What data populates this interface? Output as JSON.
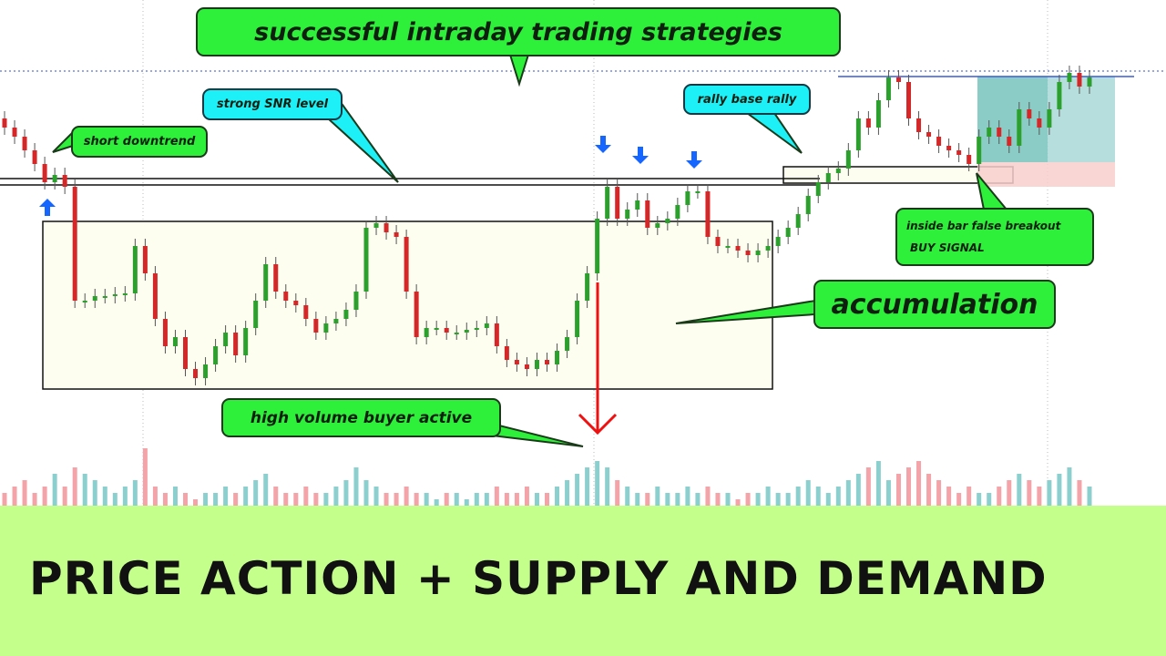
{
  "title": "successful intraday trading strategies",
  "banner": "PRICE ACTION + SUPPLY AND DEMAND",
  "annotations": {
    "snr": "strong SNR level",
    "downtrend": "short downtrend",
    "rbr": "rally base rally",
    "signal_line1": "inside bar false breakout",
    "signal_line2": "BUY SIGNAL",
    "accumulation": "accumulation",
    "volume": "high volume buyer active"
  },
  "colors": {
    "up": "#2ca02c",
    "down": "#d62728",
    "vol_up": "#8ccfcf",
    "vol_down": "#f4a3a8",
    "callout_green": "#2ef03a",
    "callout_cyan": "#1ef0f8",
    "banner": "#c4ff8c",
    "arrow_blue": "#1565ff",
    "arrow_red": "#ee1111"
  },
  "chart_data": {
    "type": "candlestick",
    "title": "",
    "xlabel": "",
    "ylabel": "",
    "grid": false,
    "first_open": 330,
    "closes": [
      320,
      310,
      295,
      280,
      260,
      268,
      255,
      130,
      130,
      135,
      135,
      137,
      138,
      190,
      160,
      110,
      80,
      90,
      55,
      45,
      60,
      80,
      95,
      70,
      100,
      130,
      170,
      140,
      130,
      125,
      110,
      95,
      105,
      110,
      120,
      140,
      210,
      215,
      205,
      200,
      140,
      90,
      100,
      100,
      95,
      95,
      98,
      100,
      105,
      80,
      65,
      60,
      55,
      65,
      60,
      75,
      90,
      130,
      160,
      220,
      255,
      220,
      230,
      240,
      210,
      215,
      220,
      235,
      250,
      250,
      200,
      190,
      190,
      185,
      180,
      185,
      190,
      200,
      210,
      225,
      245,
      260,
      270,
      275,
      295,
      330,
      320,
      350,
      375,
      370,
      330,
      315,
      310,
      300,
      295,
      290,
      280,
      310,
      320,
      310,
      300,
      340,
      330,
      320,
      340,
      370,
      380,
      365,
      375
    ],
    "volume": [
      2,
      3,
      4,
      2,
      3,
      5,
      3,
      6,
      5,
      4,
      3,
      2,
      3,
      4,
      9,
      3,
      2,
      3,
      2,
      1,
      2,
      2,
      3,
      2,
      3,
      4,
      5,
      3,
      2,
      2,
      3,
      2,
      2,
      3,
      4,
      6,
      4,
      3,
      2,
      2,
      3,
      2,
      2,
      1,
      2,
      2,
      1,
      2,
      2,
      3,
      2,
      2,
      3,
      2,
      2,
      3,
      4,
      5,
      6,
      7,
      6,
      4,
      3,
      2,
      2,
      3,
      2,
      2,
      3,
      2,
      3,
      2,
      2,
      1,
      2,
      2,
      3,
      2,
      2,
      3,
      4,
      3,
      2,
      3,
      4,
      5,
      6,
      7,
      4,
      5,
      6,
      7,
      5,
      4,
      3,
      2,
      3,
      2,
      2,
      3,
      4,
      5,
      4,
      3,
      4,
      5,
      6,
      4,
      3
    ]
  }
}
